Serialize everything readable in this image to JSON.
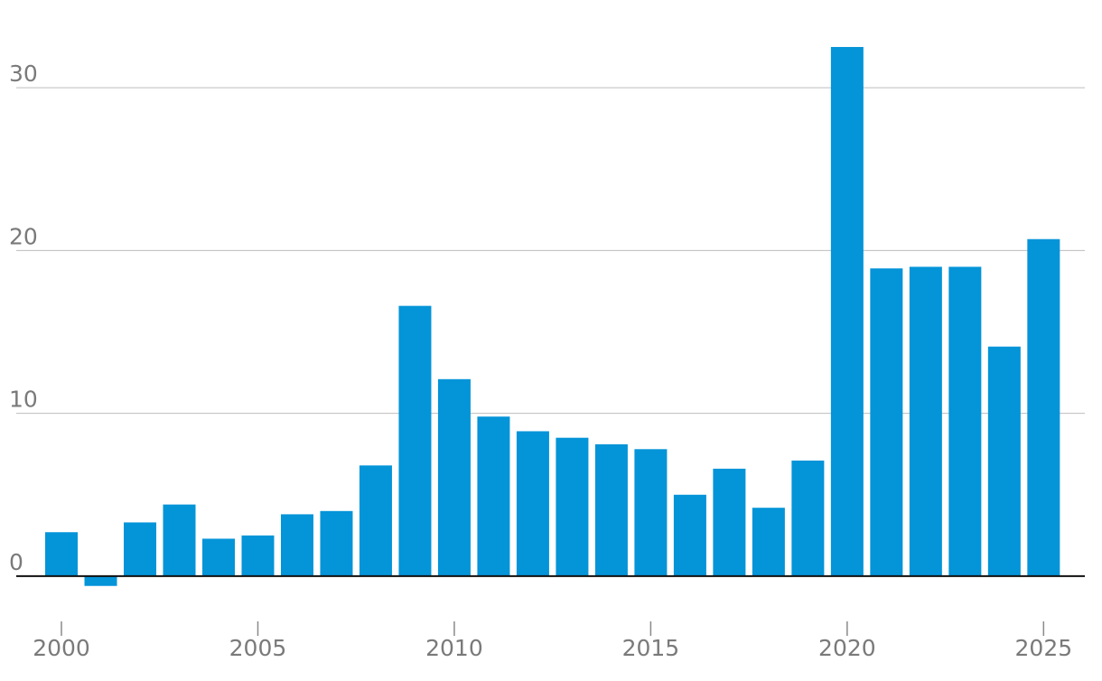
{
  "chart_data": {
    "type": "bar",
    "title": "",
    "xlabel": "",
    "ylabel": "",
    "x": [
      2000,
      2001,
      2002,
      2003,
      2004,
      2005,
      2006,
      2007,
      2008,
      2009,
      2010,
      2011,
      2012,
      2013,
      2014,
      2015,
      2016,
      2017,
      2018,
      2019,
      2020,
      2021,
      2022,
      2023,
      2024,
      2025
    ],
    "values": [
      2.7,
      -0.6,
      3.3,
      4.4,
      2.3,
      2.5,
      3.8,
      4.0,
      6.8,
      16.6,
      12.1,
      9.8,
      8.9,
      8.5,
      8.1,
      7.8,
      5.0,
      6.6,
      4.2,
      7.1,
      32.5,
      18.9,
      19.0,
      19.0,
      14.1,
      20.7
    ],
    "ylim": [
      -3,
      33.5
    ],
    "xlim": [
      1998.85,
      2026.05
    ],
    "y_ticks": [
      0,
      10,
      20,
      30
    ],
    "y_tick_labels": [
      "0",
      "10",
      "20",
      "30"
    ],
    "x_ticks": [
      2000,
      2005,
      2010,
      2015,
      2020,
      2025
    ],
    "x_tick_labels": [
      "2000",
      "2005",
      "2010",
      "2015",
      "2020",
      "2025"
    ],
    "bar_color": "#0494d8",
    "grid": true,
    "legend": "none"
  }
}
